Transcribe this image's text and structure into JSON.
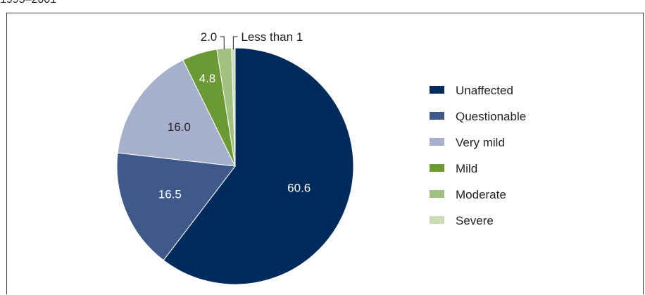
{
  "caption_fragment": "1995–2001",
  "chart_data": {
    "type": "pie",
    "categories": [
      "Unaffected",
      "Questionable",
      "Very mild",
      "Mild",
      "Moderate",
      "Severe"
    ],
    "values": [
      60.6,
      16.5,
      16.0,
      4.8,
      2.0,
      0.5
    ],
    "data_labels": [
      "60.6",
      "16.5",
      "16.0",
      "4.8",
      "2.0",
      "Less than 1"
    ],
    "colors": [
      "#002b5c",
      "#3f5a8a",
      "#a6b0cd",
      "#6b9a35",
      "#a2c07f",
      "#c9dcb5"
    ],
    "legend": {
      "position": "right"
    }
  }
}
